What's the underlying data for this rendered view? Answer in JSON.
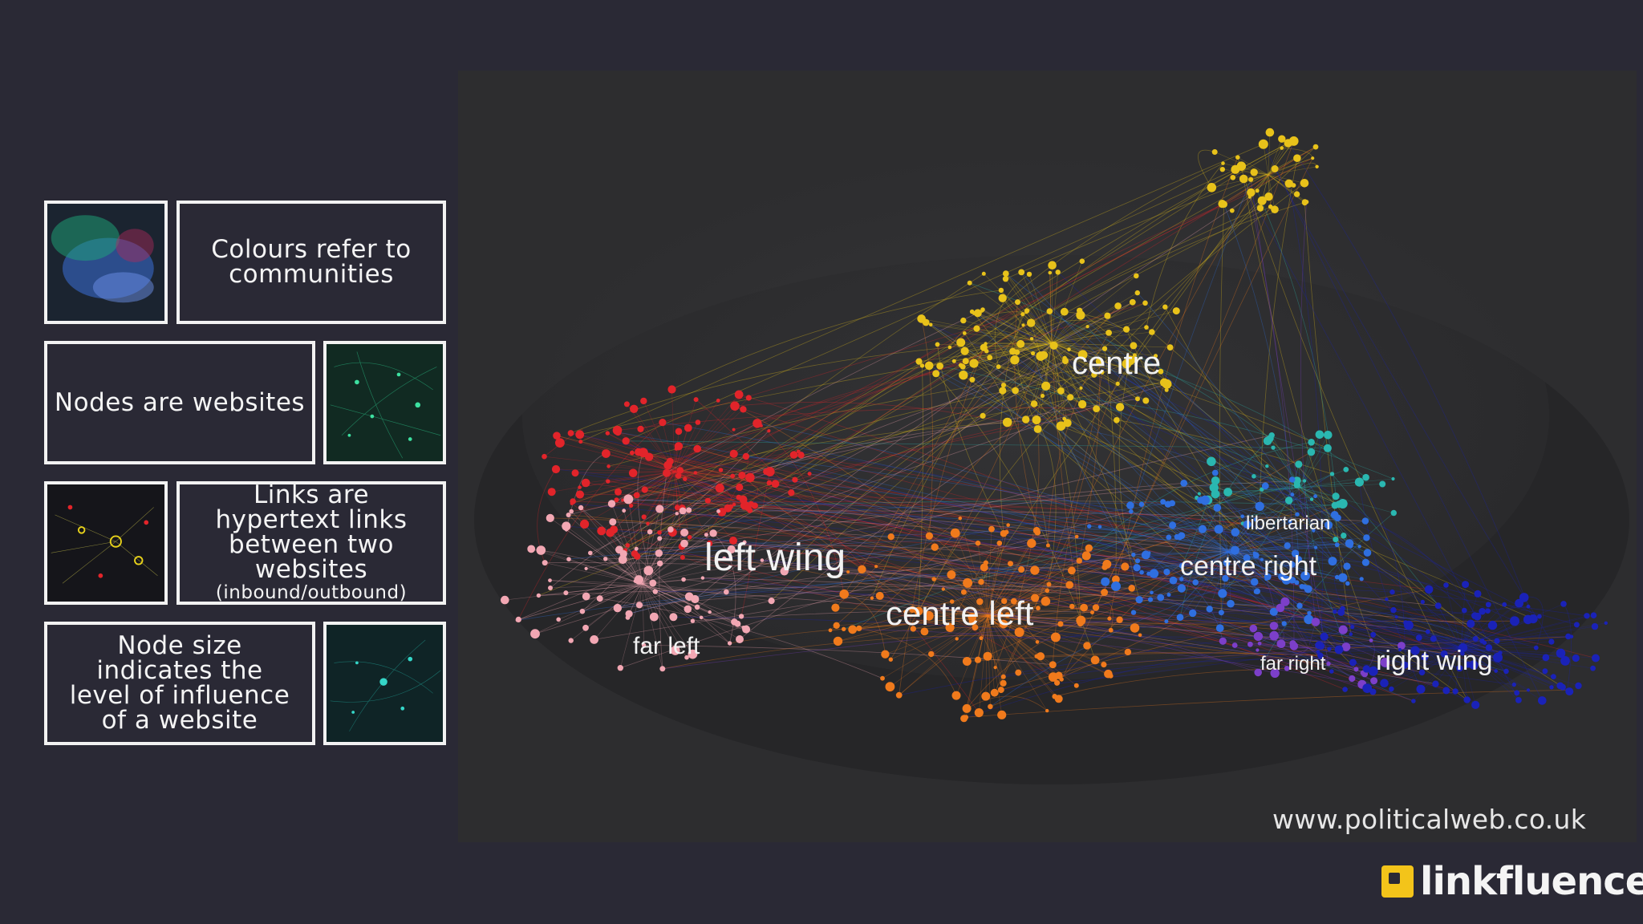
{
  "legend": [
    {
      "text": "Colours refer to communities",
      "note": "",
      "thumb": "thumb-communities"
    },
    {
      "text": "Nodes are websites",
      "note": "",
      "thumb": "thumb-nodes"
    },
    {
      "text": "Links are hypertext links between two websites",
      "note": "(inbound/outbound)",
      "thumb": "thumb-links"
    },
    {
      "text": "Node size indicates the level of influence of a website",
      "note": "",
      "thumb": "thumb-node-size"
    }
  ],
  "network": {
    "communities": [
      {
        "label": "centre",
        "color": "#e8c21a"
      },
      {
        "label": "left wing",
        "color": "#e2242a"
      },
      {
        "label": "centre left",
        "color": "#f07a1c"
      },
      {
        "label": "far left",
        "color": "#f2a7b3"
      },
      {
        "label": "libertarian",
        "color": "#2ab7b0"
      },
      {
        "label": "centre right",
        "color": "#2f6fe0"
      },
      {
        "label": "far right",
        "color": "#7c3fc9"
      },
      {
        "label": "right wing",
        "color": "#1a22b8"
      }
    ]
  },
  "source_url": "www.politicalweb.co.uk",
  "brand": {
    "name": "linkfluence",
    "accent": "#f3c41a"
  }
}
